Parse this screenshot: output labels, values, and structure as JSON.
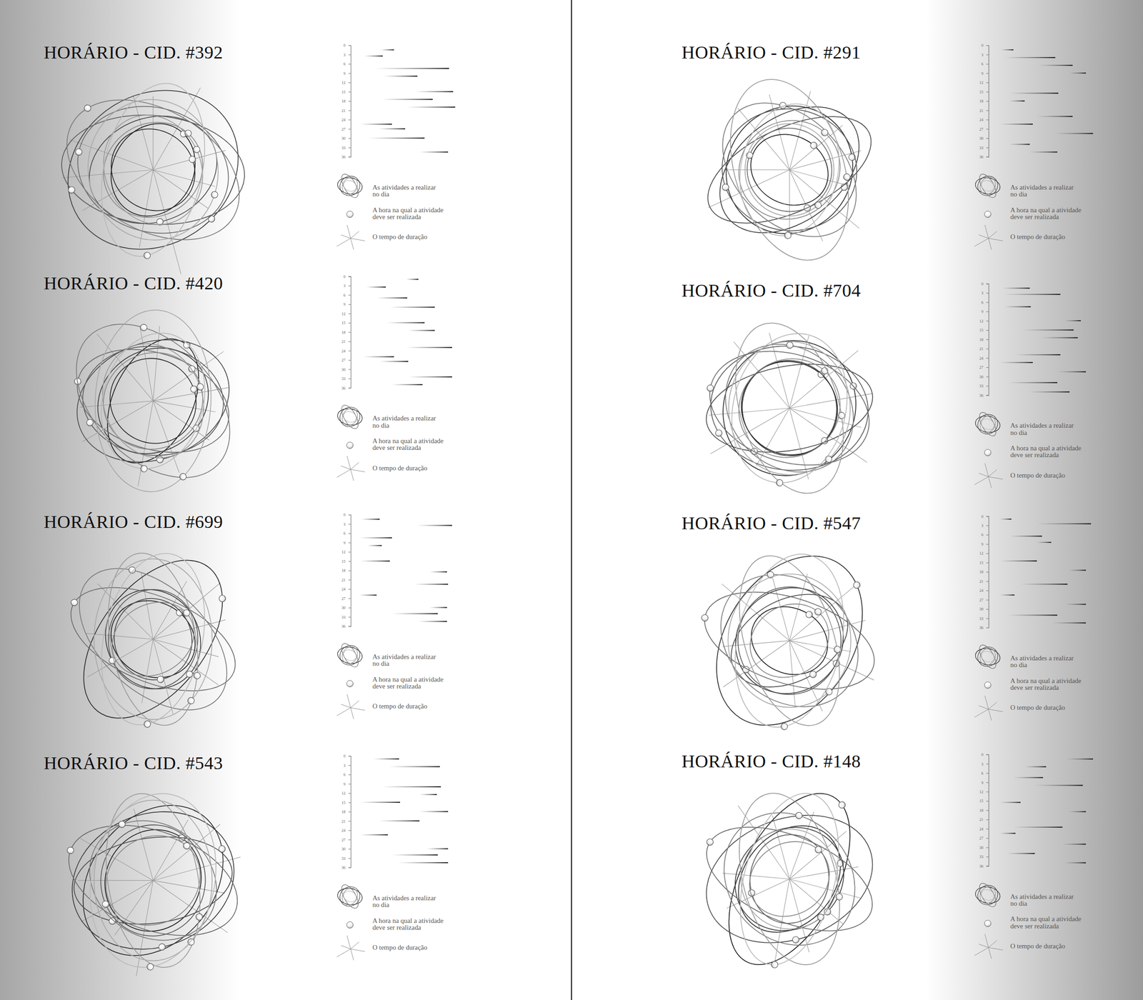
{
  "chart_data": [
    {
      "type": "range",
      "title": "HORÁRIO - CID. #392",
      "y": [
        1.5,
        3.5,
        7.5,
        10,
        15,
        17.5,
        20,
        25.5,
        27,
        30,
        34.5
      ],
      "starts": [
        23,
        7,
        17,
        26,
        57,
        24,
        49,
        3,
        21,
        11,
        61
      ],
      "ends": [
        36,
        25,
        90,
        59,
        94,
        74,
        96,
        34,
        47,
        66,
        89
      ],
      "xlim": [
        0,
        100
      ],
      "ylim": [
        0,
        36
      ],
      "yticks": [
        0,
        3,
        6,
        9,
        12,
        15,
        18,
        21,
        24,
        27,
        30,
        33,
        36
      ],
      "tick_labels": "y",
      "annotations": [
        "As atividades a realizar no dia",
        "A hora na qual a atividade deve ser realizada",
        "O tempo de duração"
      ]
    },
    {
      "type": "range",
      "title": "HORÁRIO - CID. #420",
      "y": [
        1,
        3.5,
        7,
        10,
        15,
        17.5,
        23,
        26,
        27.5,
        32.5,
        35
      ],
      "starts": [
        48,
        9,
        19,
        32,
        29,
        50,
        48,
        6,
        22,
        50,
        34
      ],
      "ends": [
        60,
        28,
        49,
        76,
        66,
        76,
        93,
        36,
        50,
        93,
        64
      ],
      "xlim": [
        0,
        100
      ],
      "ylim": [
        0,
        36
      ],
      "yticks": [
        0,
        3,
        6,
        9,
        12,
        15,
        18,
        21,
        24,
        27,
        30,
        33,
        36
      ],
      "tick_labels": "y",
      "annotations": [
        "As atividades a realizar no dia",
        "A hora na qual a atividade deve ser realizada",
        "O tempo de duração"
      ]
    },
    {
      "type": "range",
      "title": "HORÁRIO - CID. #699",
      "y": [
        1.5,
        3.5,
        7.5,
        10,
        15,
        18.5,
        22.5,
        26,
        30,
        32,
        34.5
      ],
      "starts": [
        4,
        59,
        3,
        10,
        3,
        71,
        56,
        2,
        71,
        34,
        60
      ],
      "ends": [
        22,
        93,
        34,
        24,
        32,
        88,
        89,
        19,
        88,
        79,
        88
      ],
      "xlim": [
        0,
        100
      ],
      "ylim": [
        0,
        36
      ],
      "yticks": [
        0,
        3,
        6,
        9,
        12,
        15,
        18,
        21,
        24,
        27,
        30,
        33,
        36
      ],
      "tick_labels": "y",
      "annotations": [
        "As atividades a realizar no dia",
        "A hora na qual a atividade deve ser realizada",
        "O tempo de duração"
      ]
    },
    {
      "type": "range",
      "title": "HORÁRIO - CID. #543",
      "y": [
        1,
        3.5,
        10,
        12.5,
        15,
        18,
        21,
        25.5,
        30,
        32,
        34.5
      ],
      "starts": [
        16,
        31,
        24,
        61,
        3,
        61,
        21,
        3,
        68,
        34,
        40
      ],
      "ends": [
        41,
        81,
        82,
        78,
        42,
        89,
        61,
        30,
        89,
        79,
        89
      ],
      "xlim": [
        0,
        100
      ],
      "ylim": [
        0,
        36
      ],
      "yticks": [
        0,
        3,
        6,
        9,
        12,
        15,
        18,
        21,
        24,
        27,
        30,
        33,
        36
      ],
      "tick_labels": "y",
      "annotations": [
        "As atividades a realizar no dia",
        "A hora na qual a atividade deve ser realizada",
        "O tempo de duração"
      ]
    },
    {
      "type": "range",
      "title": "HORÁRIO - CID. #291",
      "y": [
        1.5,
        4,
        6.5,
        9,
        15.5,
        18,
        23,
        25.5,
        28.5,
        32,
        34.5
      ],
      "starts": [
        6,
        9,
        43,
        73,
        14,
        14,
        41,
        5,
        59,
        14,
        34
      ],
      "ends": [
        18,
        59,
        76,
        89,
        62,
        29,
        76,
        37,
        96,
        34,
        61
      ],
      "xlim": [
        0,
        100
      ],
      "ylim": [
        0,
        36
      ],
      "yticks": [
        0,
        3,
        6,
        9,
        12,
        15,
        18,
        21,
        24,
        27,
        30,
        33,
        36
      ],
      "tick_labels": "y",
      "annotations": [
        "As atividades a realizar no dia",
        "A hora na qual a atividade deve ser realizada",
        "O tempo de duração"
      ]
    },
    {
      "type": "range",
      "title": "HORÁRIO - CID. #704",
      "y": [
        1.5,
        3.5,
        7.5,
        12,
        15,
        17.5,
        23,
        25.5,
        28.5,
        32,
        35
      ],
      "starts": [
        7,
        9,
        9,
        68,
        27,
        45,
        20,
        5,
        61,
        13,
        33
      ],
      "ends": [
        34,
        64,
        35,
        84,
        77,
        81,
        64,
        37,
        89,
        61,
        73
      ],
      "xlim": [
        0,
        100
      ],
      "ylim": [
        0,
        36
      ],
      "yticks": [
        0,
        3,
        6,
        9,
        12,
        15,
        18,
        21,
        24,
        27,
        30,
        33,
        36
      ],
      "tick_labels": "y",
      "annotations": [
        "As atividades a realizar no dia",
        "A hora na qual a atividade deve ser realizada",
        "O tempo de duração"
      ]
    },
    {
      "type": "range",
      "title": "HORÁRIO - CID. #547",
      "y": [
        1,
        2.5,
        6.5,
        8.5,
        14.5,
        17.5,
        22,
        25.5,
        28.5,
        32,
        34.5
      ],
      "starts": [
        5,
        41,
        14,
        41,
        5,
        72,
        25,
        5,
        69,
        12,
        56
      ],
      "ends": [
        16,
        94,
        46,
        55,
        41,
        89,
        71,
        19,
        89,
        61,
        89
      ],
      "xlim": [
        0,
        100
      ],
      "ylim": [
        0,
        36
      ],
      "yticks": [
        0,
        3,
        6,
        9,
        12,
        15,
        18,
        21,
        24,
        27,
        30,
        33,
        36
      ],
      "tick_labels": "y",
      "annotations": [
        "As atividades a realizar no dia",
        "A hora na qual a atividade deve ser realizada",
        "O tempo de duração"
      ]
    },
    {
      "type": "range",
      "title": "HORÁRIO - CID. #148",
      "y": [
        1.5,
        4,
        7.5,
        10,
        15.5,
        18.5,
        23.5,
        25.5,
        29,
        32,
        35
      ],
      "starts": [
        70,
        29,
        18,
        39,
        5,
        72,
        18,
        5,
        66,
        12,
        68
      ],
      "ends": [
        96,
        50,
        47,
        86,
        25,
        89,
        66,
        20,
        89,
        39,
        89
      ],
      "xlim": [
        0,
        100
      ],
      "ylim": [
        0,
        36
      ],
      "yticks": [
        0,
        3,
        6,
        9,
        12,
        15,
        18,
        21,
        24,
        27,
        30,
        33,
        36
      ],
      "tick_labels": "y",
      "annotations": [
        "As atividades a realizar no dia",
        "A hora na qual a atividade deve ser realizada",
        "O tempo de duração"
      ]
    }
  ]
}
